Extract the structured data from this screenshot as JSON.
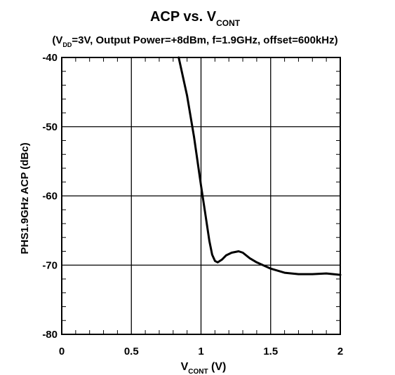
{
  "chart_data": {
    "type": "line",
    "title": {
      "main": "ACP  vs.  V",
      "main_sub": "CONT"
    },
    "subtitle": {
      "open": "(V",
      "sub": "DD",
      "rest": "=3V, Output Power=+8dBm, f=1.9GHz, offset=600kHz)"
    },
    "xlabel": {
      "main": "V",
      "sub": "CONT",
      "unit": " (V)"
    },
    "ylabel": {
      "line1": "ACP (dBc)",
      "line2": "PHS1.9GHz"
    },
    "xlim": [
      0,
      2
    ],
    "ylim": [
      -80,
      -40
    ],
    "x_ticks": [
      0,
      0.5,
      1,
      1.5,
      2
    ],
    "x_tick_labels": [
      "0",
      "0.5",
      "1",
      "1.5",
      "2"
    ],
    "y_ticks": [
      -40,
      -50,
      -60,
      -70,
      -80
    ],
    "y_tick_labels": [
      "-40",
      "-50",
      "-60",
      "-70",
      "-80"
    ],
    "grid": true,
    "series": [
      {
        "color": "#000000",
        "x": [
          0.84,
          0.9,
          0.95,
          1.0,
          1.03,
          1.06,
          1.08,
          1.1,
          1.12,
          1.15,
          1.18,
          1.22,
          1.27,
          1.3,
          1.35,
          1.4,
          1.5,
          1.6,
          1.7,
          1.8,
          1.9,
          2.0
        ],
        "y": [
          -40,
          -45.5,
          -51.5,
          -58.5,
          -62.5,
          -66.5,
          -68.5,
          -69.4,
          -69.6,
          -69.2,
          -68.6,
          -68.2,
          -68.0,
          -68.2,
          -69.0,
          -69.6,
          -70.5,
          -71.1,
          -71.3,
          -71.3,
          -71.2,
          -71.4
        ]
      }
    ]
  }
}
